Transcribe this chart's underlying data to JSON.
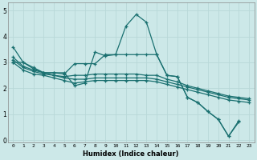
{
  "xlabel": "Humidex (Indice chaleur)",
  "xlim": [
    -0.5,
    23.5
  ],
  "ylim": [
    -0.1,
    5.3
  ],
  "yticks": [
    0,
    1,
    2,
    3,
    4,
    5
  ],
  "xticks": [
    0,
    1,
    2,
    3,
    4,
    5,
    6,
    7,
    8,
    9,
    10,
    11,
    12,
    13,
    14,
    15,
    16,
    17,
    18,
    19,
    20,
    21,
    22,
    23
  ],
  "bg_color": "#cce8e8",
  "line_color": "#1a7070",
  "grid_color": "#b8d8d8",
  "series": {
    "s1": [
      3.6,
      3.0,
      2.8,
      2.6,
      2.6,
      2.6,
      2.1,
      2.2,
      3.4,
      3.25,
      3.3,
      4.4,
      4.85,
      4.55,
      3.3,
      2.5,
      2.45,
      1.65,
      1.45,
      1.1,
      0.8,
      0.15,
      0.75,
      null
    ],
    "s2": [
      3.0,
      3.0,
      2.75,
      2.6,
      2.6,
      2.55,
      2.95,
      2.95,
      2.95,
      3.3,
      3.3,
      3.3,
      3.3,
      3.3,
      3.3,
      2.5,
      2.45,
      1.65,
      1.45,
      1.1,
      0.8,
      0.15,
      0.7,
      null
    ],
    "s3": [
      3.2,
      2.85,
      2.7,
      2.6,
      2.5,
      2.45,
      2.5,
      2.5,
      2.55,
      2.55,
      2.55,
      2.55,
      2.55,
      2.5,
      2.5,
      2.35,
      2.25,
      2.1,
      2.0,
      1.9,
      1.8,
      1.7,
      1.65,
      1.6
    ],
    "s4": [
      3.1,
      2.8,
      2.65,
      2.55,
      2.5,
      2.4,
      2.35,
      2.35,
      2.4,
      2.4,
      2.4,
      2.4,
      2.4,
      2.4,
      2.35,
      2.25,
      2.15,
      2.05,
      1.95,
      1.85,
      1.75,
      1.65,
      1.6,
      1.55
    ],
    "s5": [
      3.0,
      2.7,
      2.55,
      2.5,
      2.4,
      2.3,
      2.2,
      2.25,
      2.3,
      2.3,
      2.3,
      2.3,
      2.3,
      2.3,
      2.25,
      2.15,
      2.05,
      1.95,
      1.85,
      1.75,
      1.65,
      1.55,
      1.5,
      1.45
    ]
  }
}
